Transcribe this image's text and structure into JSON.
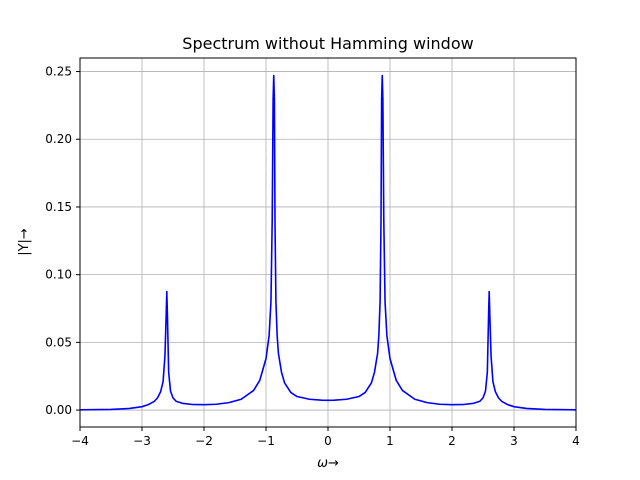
{
  "chart_data": {
    "type": "line",
    "title": "Spectrum without Hamming window",
    "xlabel": "ω→",
    "ylabel": "|Y|→",
    "xlim": [
      -4,
      4
    ],
    "ylim": [
      -0.0125,
      0.26
    ],
    "x_ticks": [
      -4,
      -3,
      -2,
      -1,
      0,
      1,
      2,
      3,
      4
    ],
    "x_tick_labels": [
      "−4",
      "−3",
      "−2",
      "−1",
      "0",
      "1",
      "2",
      "3",
      "4"
    ],
    "y_ticks": [
      0.0,
      0.05,
      0.1,
      0.15,
      0.2,
      0.25
    ],
    "y_tick_labels": [
      "0.00",
      "0.05",
      "0.10",
      "0.15",
      "0.20",
      "0.25"
    ],
    "grid": true,
    "series": [
      {
        "color": "#0000ff",
        "x": [
          -4.0,
          -3.5,
          -3.2,
          -3.0,
          -2.9,
          -2.8,
          -2.75,
          -2.7,
          -2.66,
          -2.63,
          -2.61,
          -2.6,
          -2.59,
          -2.57,
          -2.54,
          -2.5,
          -2.45,
          -2.35,
          -2.2,
          -2.0,
          -1.8,
          -1.6,
          -1.4,
          -1.2,
          -1.1,
          -1.0,
          -0.95,
          -0.92,
          -0.9,
          -0.885,
          -0.875,
          -0.865,
          -0.855,
          -0.84,
          -0.82,
          -0.8,
          -0.75,
          -0.7,
          -0.6,
          -0.5,
          -0.3,
          -0.1,
          0.0,
          0.1,
          0.3,
          0.5,
          0.6,
          0.7,
          0.75,
          0.8,
          0.82,
          0.84,
          0.855,
          0.865,
          0.875,
          0.885,
          0.9,
          0.92,
          0.95,
          1.0,
          1.1,
          1.2,
          1.4,
          1.6,
          1.8,
          2.0,
          2.2,
          2.35,
          2.45,
          2.5,
          2.54,
          2.57,
          2.59,
          2.6,
          2.61,
          2.63,
          2.66,
          2.7,
          2.75,
          2.8,
          2.9,
          3.0,
          3.2,
          3.5,
          4.0
        ],
        "y": [
          0.0002,
          0.0005,
          0.0012,
          0.0025,
          0.004,
          0.0065,
          0.009,
          0.0135,
          0.021,
          0.04,
          0.07,
          0.0875,
          0.07,
          0.028,
          0.014,
          0.009,
          0.0065,
          0.005,
          0.0042,
          0.004,
          0.0043,
          0.0055,
          0.008,
          0.0145,
          0.022,
          0.038,
          0.055,
          0.08,
          0.14,
          0.23,
          0.247,
          0.23,
          0.14,
          0.08,
          0.055,
          0.042,
          0.028,
          0.02,
          0.013,
          0.01,
          0.008,
          0.0073,
          0.0072,
          0.0073,
          0.008,
          0.01,
          0.013,
          0.02,
          0.028,
          0.042,
          0.055,
          0.08,
          0.14,
          0.23,
          0.247,
          0.23,
          0.14,
          0.08,
          0.055,
          0.038,
          0.022,
          0.0145,
          0.008,
          0.0055,
          0.0043,
          0.004,
          0.0042,
          0.005,
          0.0065,
          0.009,
          0.014,
          0.028,
          0.07,
          0.0875,
          0.07,
          0.04,
          0.021,
          0.0135,
          0.009,
          0.0065,
          0.004,
          0.0025,
          0.0012,
          0.0005,
          0.0002
        ]
      }
    ]
  }
}
